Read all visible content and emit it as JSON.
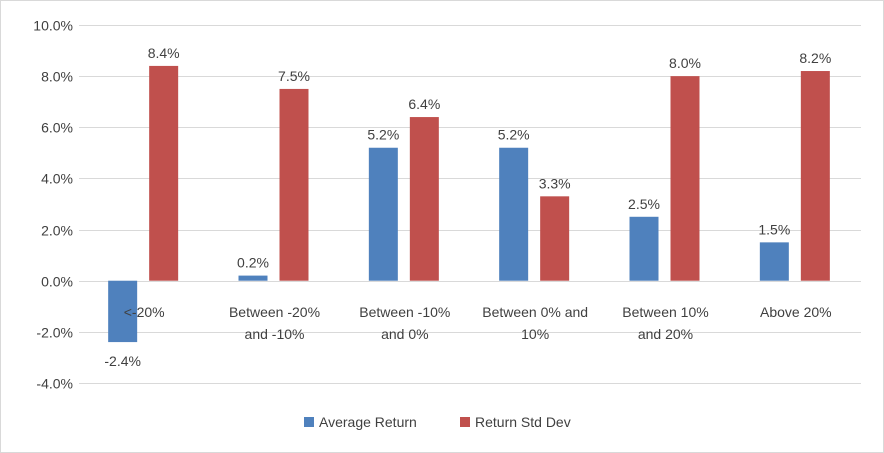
{
  "chart_data": {
    "type": "bar",
    "title": "",
    "xlabel": "",
    "ylabel": "",
    "ylim": [
      -4.0,
      10.0
    ],
    "ytick_step": 2.0,
    "yticks": [
      "-4.0%",
      "-2.0%",
      "0.0%",
      "2.0%",
      "4.0%",
      "6.0%",
      "8.0%",
      "10.0%"
    ],
    "grid": true,
    "legend_position": "bottom",
    "categories": [
      [
        "<-20%"
      ],
      [
        "Between -20%",
        "and -10%"
      ],
      [
        "Between -10%",
        "and 0%"
      ],
      [
        "Between 0% and",
        "10%"
      ],
      [
        "Between 10%",
        "and 20%"
      ],
      [
        "Above 20%"
      ]
    ],
    "series": [
      {
        "name": "Average Return",
        "color": "#4f81bd",
        "values": [
          -2.4,
          0.2,
          5.2,
          5.2,
          2.5,
          1.5
        ],
        "labels": [
          "-2.4%",
          "0.2%",
          "5.2%",
          "5.2%",
          "2.5%",
          "1.5%"
        ]
      },
      {
        "name": "Return Std Dev",
        "color": "#c0504d",
        "values": [
          8.4,
          7.5,
          6.4,
          3.3,
          8.0,
          8.2
        ],
        "labels": [
          "8.4%",
          "7.5%",
          "6.4%",
          "3.3%",
          "8.0%",
          "8.2%"
        ]
      }
    ]
  }
}
